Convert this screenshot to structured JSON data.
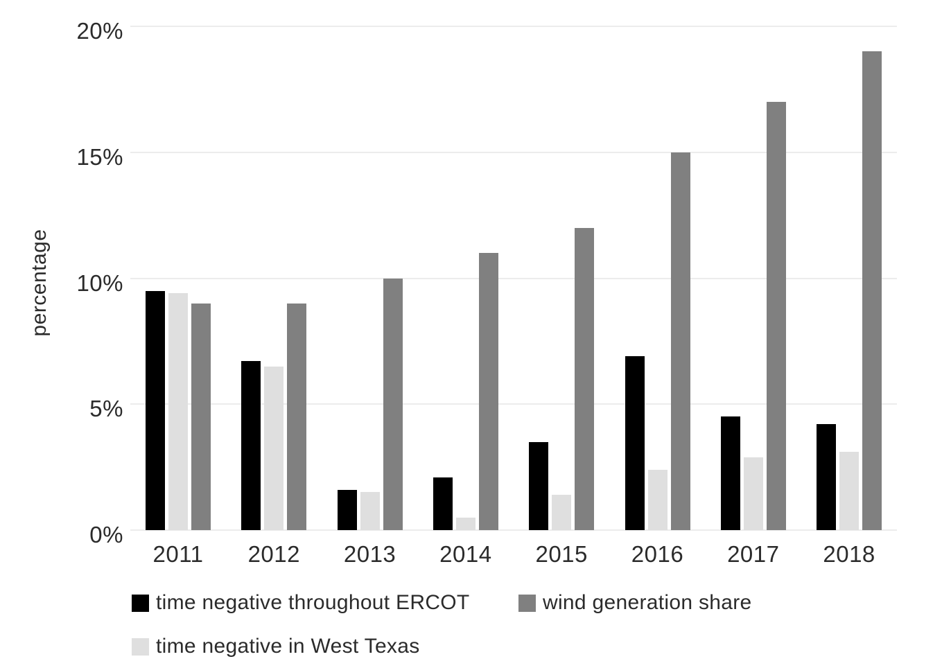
{
  "chart_data": {
    "type": "bar",
    "title": "",
    "xlabel": "",
    "ylabel": "percentage",
    "categories": [
      "2011",
      "2012",
      "2013",
      "2014",
      "2015",
      "2016",
      "2017",
      "2018"
    ],
    "series": [
      {
        "name": "time negative throughout ERCOT",
        "color": "#000000",
        "values": [
          9.5,
          6.7,
          1.6,
          2.1,
          3.5,
          6.9,
          4.5,
          4.2
        ]
      },
      {
        "name": "time negative in West Texas",
        "color": "#dfdfdf",
        "values": [
          9.4,
          6.5,
          1.5,
          0.5,
          1.4,
          2.4,
          2.9,
          3.1
        ]
      },
      {
        "name": "wind generation share",
        "color": "#808080",
        "values": [
          9,
          9,
          10,
          11,
          12,
          15,
          17,
          19
        ]
      }
    ],
    "ylim": [
      0,
      20
    ],
    "yticks": [
      "0%",
      "5%",
      "10%",
      "15%",
      "20%"
    ],
    "grid": true,
    "legend_position": "bottom",
    "gridline_color": "#ececec",
    "text_color": "#2b2b2b"
  }
}
